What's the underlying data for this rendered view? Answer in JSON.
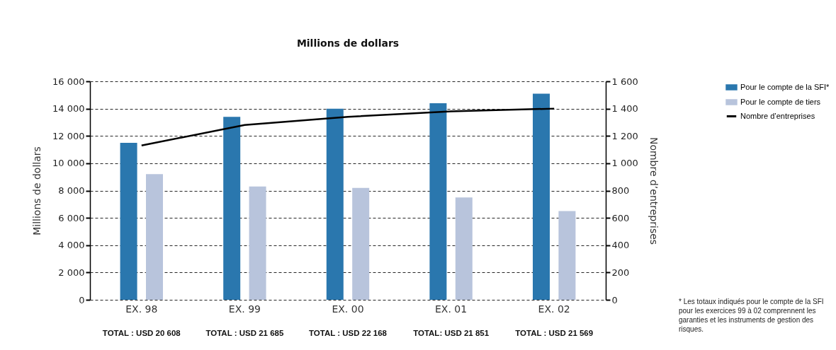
{
  "chart_data": {
    "type": "bar",
    "title": "Millions de dollars",
    "ylabel": "Millions de dollars",
    "y2label": "Nombre d’entreprises",
    "categories": [
      "EX. 98",
      "EX. 99",
      "EX. 00",
      "EX. 01",
      "EX. 02"
    ],
    "series": [
      {
        "name": "Pour le compte de la SFI*",
        "color": "#2a77ae",
        "values": [
          11500,
          13400,
          14000,
          14400,
          15100
        ]
      },
      {
        "name": "Pour le compte de tiers",
        "color": "#b8c4dc",
        "values": [
          9200,
          8300,
          8200,
          7500,
          6500
        ]
      },
      {
        "name": "Nombre d’entreprises",
        "type": "line",
        "axis": "y2",
        "color": "#000000",
        "values": [
          1130,
          1280,
          1340,
          1380,
          1400
        ]
      }
    ],
    "ylim": [
      0,
      16000
    ],
    "yticks": [
      {
        "value": 0,
        "label": "0"
      },
      {
        "value": 2000,
        "label": "2 000"
      },
      {
        "value": 4000,
        "label": "4 000"
      },
      {
        "value": 6000,
        "label": "6 000"
      },
      {
        "value": 8000,
        "label": "8 000"
      },
      {
        "value": 10000,
        "label": "10 000"
      },
      {
        "value": 12000,
        "label": "12 000"
      },
      {
        "value": 14000,
        "label": "14 000"
      },
      {
        "value": 16000,
        "label": "16 000"
      }
    ],
    "y2lim": [
      0,
      1600
    ],
    "y2ticks": [
      {
        "value": 0,
        "label": "0"
      },
      {
        "value": 200,
        "label": "200"
      },
      {
        "value": 400,
        "label": "400"
      },
      {
        "value": 600,
        "label": "600"
      },
      {
        "value": 800,
        "label": "800"
      },
      {
        "value": 1000,
        "label": "1 000"
      },
      {
        "value": 1200,
        "label": "1 200"
      },
      {
        "value": 1400,
        "label": "1 400"
      },
      {
        "value": 1600,
        "label": "1 600"
      }
    ],
    "grid": "y",
    "legend": "right",
    "annotations": [
      "TOTAL : USD 20 608",
      "TOTAL : USD 21 685",
      "TOTAL : USD 22 168",
      "TOTAL: USD 21 851",
      "TOTAL : USD 21 569",
      "* Les totaux indiqués pour le compte de la SFI pour les exercices 99 à 02 comprennent les garanties et les instruments de gestion des risques."
    ]
  }
}
